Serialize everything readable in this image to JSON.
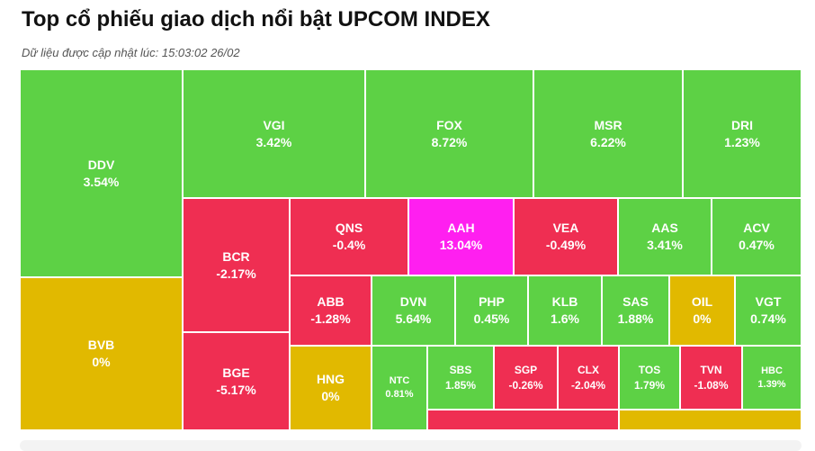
{
  "header": {
    "title": "Top cổ phiếu giao dịch nổi bật UPCOM INDEX",
    "updated": "Dữ liệu được cập nhật lúc: 15:03:02 26/02"
  },
  "colors": {
    "up": "#5dd145",
    "down": "#ef2e52",
    "ceiling": "#ff1ff0",
    "flat": "#e1b900"
  },
  "chart_data": {
    "type": "treemap",
    "title": "Top cổ phiếu giao dịch nổi bật UPCOM INDEX",
    "tiles": [
      {
        "symbol": "DDV",
        "change": "3.54%",
        "value": 3.54,
        "status": "up"
      },
      {
        "symbol": "BVB",
        "change": "0%",
        "value": 0,
        "status": "flat"
      },
      {
        "symbol": "VGI",
        "change": "3.42%",
        "value": 3.42,
        "status": "up"
      },
      {
        "symbol": "FOX",
        "change": "8.72%",
        "value": 8.72,
        "status": "up"
      },
      {
        "symbol": "MSR",
        "change": "6.22%",
        "value": 6.22,
        "status": "up"
      },
      {
        "symbol": "DRI",
        "change": "1.23%",
        "value": 1.23,
        "status": "up"
      },
      {
        "symbol": "BCR",
        "change": "-2.17%",
        "value": -2.17,
        "status": "down"
      },
      {
        "symbol": "BGE",
        "change": "-5.17%",
        "value": -5.17,
        "status": "down"
      },
      {
        "symbol": "QNS",
        "change": "-0.4%",
        "value": -0.4,
        "status": "down"
      },
      {
        "symbol": "AAH",
        "change": "13.04%",
        "value": 13.04,
        "status": "ceiling"
      },
      {
        "symbol": "VEA",
        "change": "-0.49%",
        "value": -0.49,
        "status": "down"
      },
      {
        "symbol": "AAS",
        "change": "3.41%",
        "value": 3.41,
        "status": "up"
      },
      {
        "symbol": "ACV",
        "change": "0.47%",
        "value": 0.47,
        "status": "up"
      },
      {
        "symbol": "ABB",
        "change": "-1.28%",
        "value": -1.28,
        "status": "down"
      },
      {
        "symbol": "HNG",
        "change": "0%",
        "value": 0,
        "status": "flat"
      },
      {
        "symbol": "DVN",
        "change": "5.64%",
        "value": 5.64,
        "status": "up"
      },
      {
        "symbol": "PHP",
        "change": "0.45%",
        "value": 0.45,
        "status": "up"
      },
      {
        "symbol": "KLB",
        "change": "1.6%",
        "value": 1.6,
        "status": "up"
      },
      {
        "symbol": "SAS",
        "change": "1.88%",
        "value": 1.88,
        "status": "up"
      },
      {
        "symbol": "OIL",
        "change": "0%",
        "value": 0,
        "status": "flat"
      },
      {
        "symbol": "VGT",
        "change": "0.74%",
        "value": 0.74,
        "status": "up"
      },
      {
        "symbol": "NTC",
        "change": "0.81%",
        "value": 0.81,
        "status": "up"
      },
      {
        "symbol": "SBS",
        "change": "1.85%",
        "value": 1.85,
        "status": "up"
      },
      {
        "symbol": "SGP",
        "change": "-0.26%",
        "value": -0.26,
        "status": "down"
      },
      {
        "symbol": "CLX",
        "change": "-2.04%",
        "value": -2.04,
        "status": "down"
      },
      {
        "symbol": "TOS",
        "change": "1.79%",
        "value": 1.79,
        "status": "up"
      },
      {
        "symbol": "TVN",
        "change": "-1.08%",
        "value": -1.08,
        "status": "down"
      },
      {
        "symbol": "HBC",
        "change": "1.39%",
        "value": 1.39,
        "status": "up"
      },
      {
        "symbol": "",
        "change": "",
        "status": "down"
      },
      {
        "symbol": "",
        "change": "",
        "status": "flat"
      }
    ]
  }
}
